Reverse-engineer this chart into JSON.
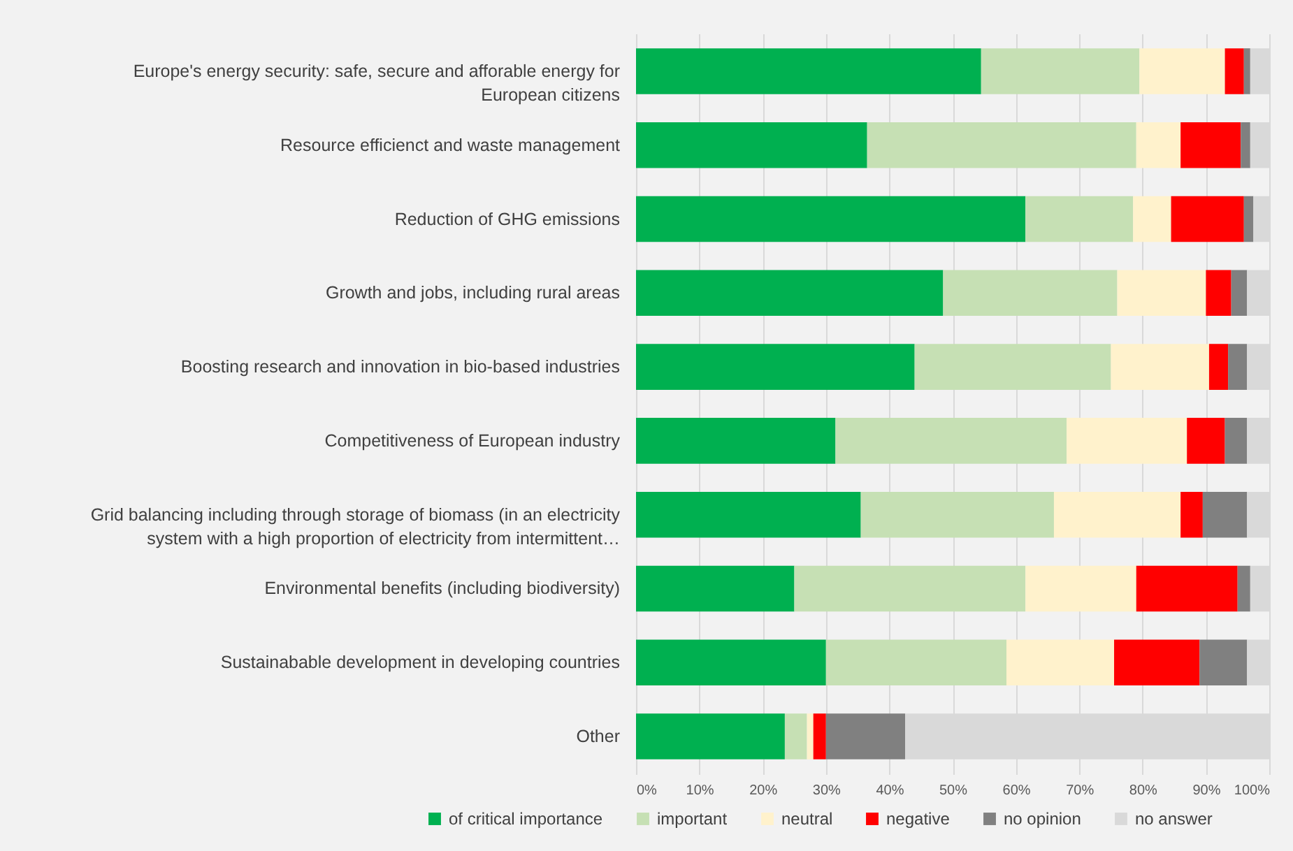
{
  "chart_data": {
    "type": "bar",
    "orientation": "horizontal",
    "stacked": true,
    "categories": [
      "Europe's energy security: safe, secure and afforable energy for European citizens",
      "Resource efficienct and waste management",
      "Reduction of GHG emissions",
      "Growth and jobs, including rural areas",
      "Boosting research and innovation in bio-based industries",
      "Competitiveness of European industry",
      "Grid balancing including through storage of biomass (in an electricity system with a high proportion of electricity from intermittent…",
      "Environmental benefits (including biodiversity)",
      "Sustainabable development in developing countries",
      "Other"
    ],
    "series": [
      {
        "name": "of critical importance",
        "color": "#00b050",
        "values": [
          54.5,
          36.5,
          61.5,
          48.5,
          44,
          31.5,
          35.5,
          25,
          30,
          23.5
        ]
      },
      {
        "name": "important",
        "color": "#c6e0b4",
        "values": [
          25,
          42.5,
          17,
          27.5,
          31,
          36.5,
          30.5,
          36.5,
          28.5,
          3.5
        ]
      },
      {
        "name": "neutral",
        "color": "#fff2cc",
        "values": [
          13.5,
          7,
          6,
          14,
          15.5,
          19,
          20,
          17.5,
          17,
          1
        ]
      },
      {
        "name": "negative",
        "color": "#ff0000",
        "values": [
          3,
          9.5,
          11.5,
          4,
          3,
          6,
          3.5,
          16,
          13.5,
          2
        ]
      },
      {
        "name": "no opinion",
        "color": "#808080",
        "values": [
          1,
          1.5,
          1.5,
          2.5,
          3,
          3.5,
          7,
          2,
          7.5,
          12.5
        ]
      },
      {
        "name": "no answer",
        "color": "#d9d9d9",
        "values": [
          3,
          3,
          2.5,
          3.5,
          3.5,
          3.5,
          3.5,
          3,
          3.5,
          57.5
        ]
      }
    ],
    "xlim": [
      0,
      100
    ],
    "xticks": [
      {
        "value": 0,
        "label": "0%"
      },
      {
        "value": 10,
        "label": "10%"
      },
      {
        "value": 20,
        "label": "20%"
      },
      {
        "value": 30,
        "label": "30%"
      },
      {
        "value": 40,
        "label": "40%"
      },
      {
        "value": 50,
        "label": "50%"
      },
      {
        "value": 60,
        "label": "60%"
      },
      {
        "value": 70,
        "label": "70%"
      },
      {
        "value": 80,
        "label": "80%"
      },
      {
        "value": 90,
        "label": "90%"
      },
      {
        "value": 100,
        "label": "100%"
      }
    ],
    "grid": "x",
    "legend": "bottom"
  }
}
